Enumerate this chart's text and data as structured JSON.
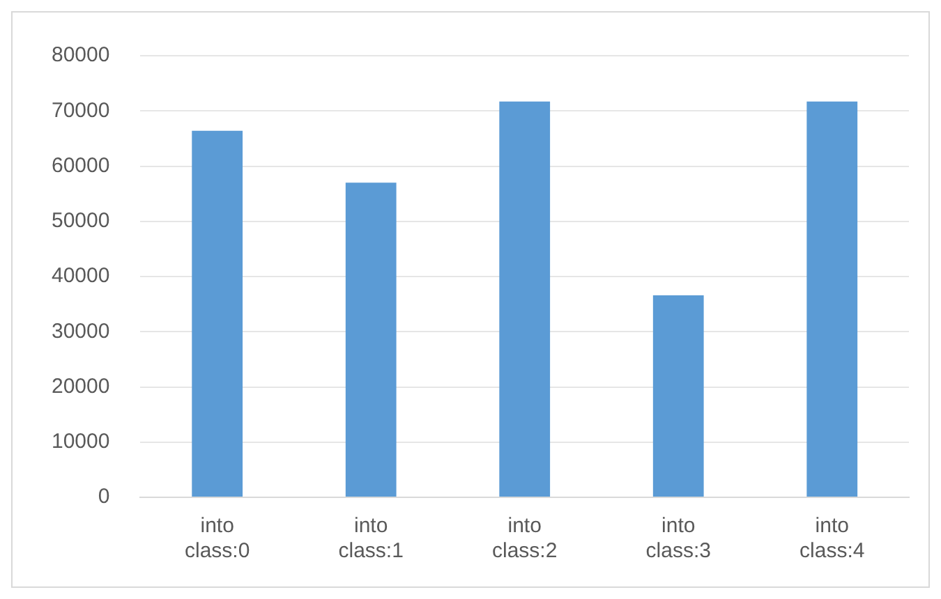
{
  "chart_data": {
    "type": "bar",
    "categories": [
      "into class:0",
      "into class:1",
      "into class:2",
      "into class:3",
      "into class:4"
    ],
    "values": [
      66400,
      57000,
      71700,
      36600,
      71700
    ],
    "color": "#5b9bd5",
    "ylim": [
      0,
      80000
    ],
    "yticks": [
      0,
      10000,
      20000,
      30000,
      40000,
      50000,
      60000,
      70000,
      80000
    ],
    "grid": "y"
  }
}
